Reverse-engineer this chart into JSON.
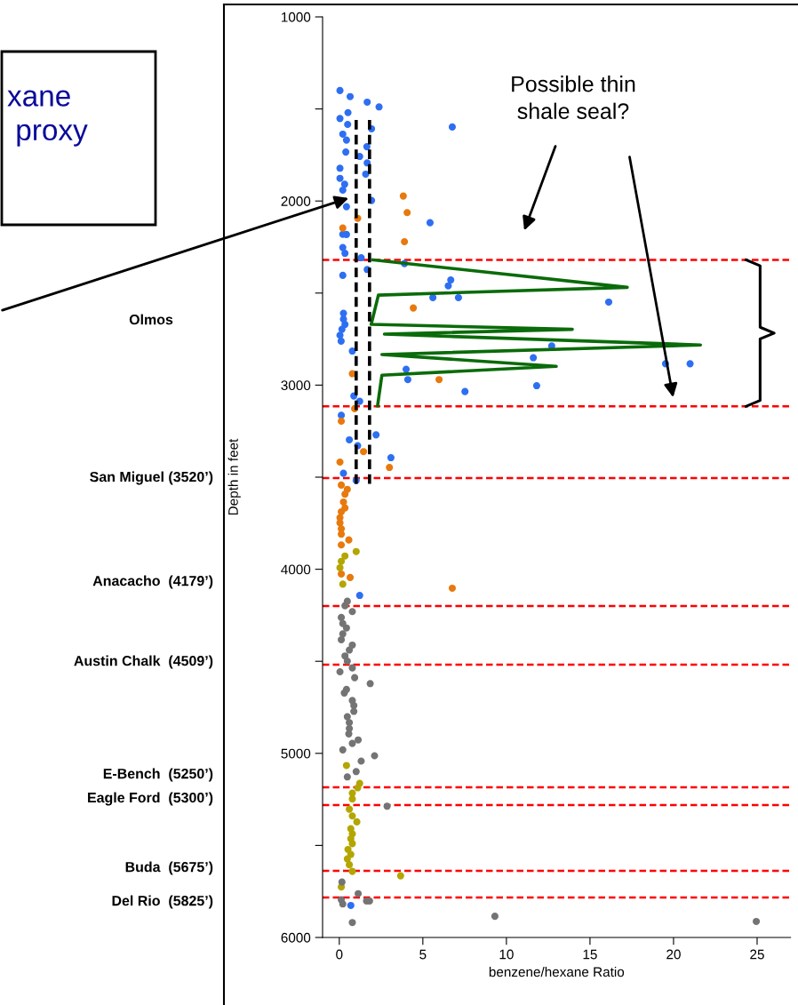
{
  "chart_data": {
    "type": "scatter",
    "xlabel": "benzene/hexane Ratio",
    "ylabel": "Depth in feet",
    "xlim": [
      -1,
      27
    ],
    "ylim": [
      6000,
      1000
    ],
    "xticks": [
      0,
      5,
      10,
      15,
      20,
      25
    ],
    "yticks": [
      1000,
      {
        "value": 1500,
        "label": null
      },
      2000,
      {
        "value": 2500,
        "label": null
      },
      3000,
      {
        "value": 3500,
        "label": null
      },
      4000,
      {
        "value": 4500,
        "label": null
      },
      5000,
      {
        "value": 5500,
        "label": null
      },
      6000
    ],
    "grid": false,
    "marker": "circle",
    "series": [
      {
        "color": "#2e6ff2",
        "x": [
          0.04,
          0.65,
          1.67,
          2.38,
          0.52,
          0.04,
          0.5,
          1.93,
          0.21,
          0.43,
          1.65,
          0.39,
          1.22,
          1.67,
          0.04,
          1.58,
          0.04,
          0.32,
          0.21,
          1.93,
          0.43,
          0.21,
          0.43,
          0.21,
          0.34,
          1.31,
          1.67,
          0.21,
          0.25,
          0.25,
          0.34,
          0.16,
          0.04,
          0.11,
          0.78,
          0.87,
          1.22,
          0.12,
          0.6,
          2.2,
          1.1,
          3.09,
          0.25,
          1.01,
          3.9,
          5.43,
          6.67,
          6.52,
          5.6,
          7.13,
          16.12,
          12.71,
          11.61,
          19.52,
          20.99,
          4.0,
          4.1,
          7.52,
          11.81,
          6.76,
          1.22,
          0.69
        ],
        "values": [
          1400,
          1433,
          1463,
          1489,
          1520,
          1552,
          1584,
          1608,
          1637,
          1669,
          1705,
          1734,
          1758,
          1793,
          1822,
          1854,
          1877,
          1909,
          1941,
          1997,
          2031,
          2181,
          2182,
          2253,
          2284,
          2308,
          2372,
          2404,
          2610,
          2642,
          2670,
          2697,
          2729,
          2761,
          2815,
          3059,
          3088,
          3164,
          3297,
          3270,
          3329,
          3394,
          3479,
          3518,
          2340,
          2118,
          2429,
          2461,
          2525,
          2525,
          2549,
          2787,
          2851,
          2884,
          2884,
          2914,
          2970,
          3035,
          3003,
          1598,
          4142,
          5826
        ]
      },
      {
        "color": "#e8790d",
        "x": [
          1.1,
          0.21,
          3.83,
          4.06,
          3.9,
          0.78,
          0.92,
          0.12,
          1.45,
          0.04,
          3.0,
          0.12,
          0.48,
          0.34,
          0.25,
          0.34,
          0.12,
          0.04,
          0.04,
          0.12,
          0.12,
          0.57,
          0.12,
          0.12,
          0.65,
          4.43,
          5.97,
          6.76
        ],
        "values": [
          2094,
          2147,
          1973,
          2063,
          2221,
          2938,
          3128,
          3196,
          3361,
          3418,
          3447,
          3543,
          3566,
          3592,
          3635,
          3667,
          3688,
          3720,
          3748,
          3780,
          3809,
          3841,
          3868,
          4026,
          4045,
          2581,
          2970,
          4103
        ]
      },
      {
        "color": "#b3a600",
        "x": [
          1.01,
          0.34,
          0.12,
          0.04,
          0.21,
          0.43,
          1.22,
          1.1,
          0.78,
          0.78,
          0.6,
          0.78,
          1.05,
          0.69,
          0.78,
          0.69,
          0.78,
          0.52,
          0.69,
          0.48,
          0.6,
          0.78,
          3.67,
          0.12
        ],
        "values": [
          3904,
          3928,
          3957,
          3992,
          4081,
          5066,
          5163,
          5187,
          5216,
          5248,
          5303,
          5340,
          5372,
          5409,
          5437,
          5464,
          5490,
          5522,
          5549,
          5573,
          5605,
          5641,
          5665,
          5726
        ]
      },
      {
        "color": "#747474",
        "x": [
          0.48,
          0.34,
          0.78,
          0.12,
          0.21,
          0.43,
          0.21,
          0.12,
          0.78,
          0.6,
          0.34,
          0.48,
          0.78,
          0.04,
          0.92,
          1.85,
          0.43,
          0.3,
          0.78,
          0.87,
          0.87,
          0.48,
          0.6,
          0.6,
          0.57,
          1.13,
          0.78,
          0.21,
          2.11,
          1.31,
          1.01,
          0.48,
          2.86,
          0.16,
          1.13,
          0.12,
          0.21,
          1.63,
          1.81,
          0.78,
          9.31,
          24.95
        ],
        "values": [
          4174,
          4198,
          4230,
          4262,
          4295,
          4319,
          4351,
          4383,
          4412,
          4439,
          4471,
          4499,
          4536,
          4557,
          4589,
          4621,
          4653,
          4672,
          4713,
          4740,
          4772,
          4801,
          4833,
          4865,
          4894,
          4927,
          4946,
          4981,
          5013,
          5042,
          5099,
          5128,
          5287,
          5699,
          5762,
          5795,
          5818,
          5802,
          5802,
          5919,
          5885,
          5913
        ]
      },
      {
        "type": "line",
        "color": "#0a6b0a",
        "marker": "none",
        "line_style": "solid",
        "x": [
          2.02,
          17.23,
          2.34,
          1.91,
          13.94,
          2.7,
          21.61,
          2.55,
          12.98,
          2.55,
          2.29
        ],
        "values": [
          2320,
          2469,
          2511,
          2670,
          2697,
          2723,
          2782,
          2834,
          2898,
          2946,
          3112
        ]
      },
      {
        "type": "line",
        "color": "#000000",
        "marker": "none",
        "line_style": "dashed",
        "x": [
          1.01,
          1.01
        ],
        "values": [
          1560,
          3540
        ]
      },
      {
        "type": "line",
        "color": "#000000",
        "marker": "none",
        "line_style": "dashed",
        "x": [
          1.81,
          1.81
        ],
        "values": [
          1560,
          3540
        ]
      }
    ],
    "ref_lines": [
      {
        "axis": "y",
        "value": 2320,
        "label": null,
        "color": "#ff0000",
        "line_style": "dashed"
      },
      {
        "axis": "y",
        "value": 3115,
        "label": null,
        "color": "#ff0000",
        "line_style": "dashed"
      },
      {
        "axis": "y",
        "value": 3505,
        "label": null,
        "color": "#ff0000",
        "line_style": "dashed"
      },
      {
        "axis": "y",
        "value": 4200,
        "label": null,
        "color": "#ff0000",
        "line_style": "dashed"
      },
      {
        "axis": "y",
        "value": 4518,
        "label": null,
        "color": "#ff0000",
        "line_style": "dashed"
      },
      {
        "axis": "y",
        "value": 5184,
        "label": null,
        "color": "#ff0000",
        "line_style": "dashed"
      },
      {
        "axis": "y",
        "value": 5281,
        "label": null,
        "color": "#ff0000",
        "line_style": "dashed"
      },
      {
        "axis": "y",
        "value": 5638,
        "label": null,
        "color": "#ff0000",
        "line_style": "dashed"
      },
      {
        "axis": "y",
        "value": 5783,
        "label": null,
        "color": "#ff0000",
        "line_style": "dashed"
      }
    ],
    "annotations": [
      "Possible thin\nshale seal?",
      "xane\n proxy",
      "Olmos",
      "San Miguel (3520’)",
      "Anacacho  (4179’)",
      "Austin Chalk  (4509’)",
      "E-Bench  (5250’)",
      "Eagle Ford  (5300’)",
      "Buda  (5675’)",
      "Del Rio  (5825’)"
    ]
  }
}
